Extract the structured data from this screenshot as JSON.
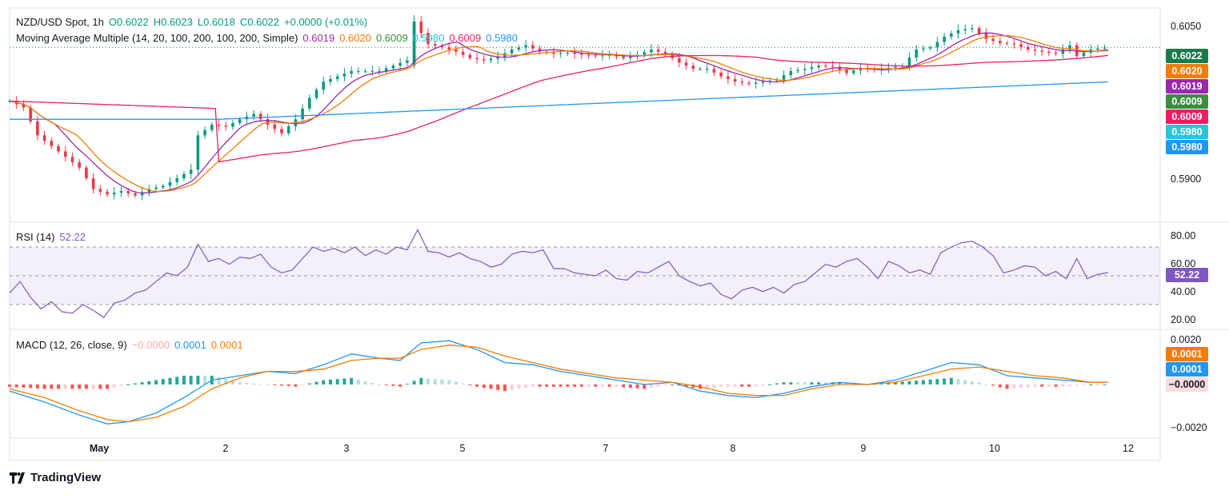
{
  "header": {
    "symbol": "NZD/USD Spot, 1h",
    "open": "O0.6022",
    "high": "H0.6023",
    "low": "L0.6018",
    "close": "C0.6022",
    "change": "+0.0000 (+0.01%)"
  },
  "ma_legend": {
    "label": "Moving Average Multiple (14, 20, 100, 200, 100, 200, Simple)",
    "values": [
      "0.6019",
      "0.6020",
      "0.6009",
      "0.5980",
      "0.6009",
      "0.5980"
    ]
  },
  "rsi_legend": {
    "label": "RSI (14)",
    "value": "52.22"
  },
  "macd_legend": {
    "label": "MACD (12, 26, close, 9)",
    "hist": "−0.0000",
    "macd": "0.0001",
    "signal": "0.0001"
  },
  "price_axis": {
    "ticks": [
      "0.6050",
      "0.5900"
    ]
  },
  "price_pills": [
    {
      "value": "0.6022",
      "color": "#1b7a4a"
    },
    {
      "value": "0.6020",
      "color": "#f57c00"
    },
    {
      "value": "0.6019",
      "color": "#9c27b0"
    },
    {
      "value": "0.6009",
      "color": "#388e3c"
    },
    {
      "value": "0.6009",
      "color": "#e91e63"
    },
    {
      "value": "0.5980",
      "color": "#26c6da"
    },
    {
      "value": "0.5980",
      "color": "#2196f3"
    }
  ],
  "rsi_axis": {
    "ticks": [
      "80.00",
      "60.00",
      "40.00",
      "20.00"
    ],
    "pill": "52.22"
  },
  "macd_axis": {
    "ticks": [
      "0.0020",
      "−0.0020"
    ],
    "pills": [
      "0.0001",
      "0.0001",
      "−0.0000"
    ]
  },
  "x_axis": {
    "labels": [
      "May",
      "2",
      "3",
      "5",
      "7",
      "8",
      "9",
      "10",
      "12"
    ]
  },
  "brand": "TradingView",
  "chart_data": [
    {
      "type": "candlestick",
      "title": "NZD/USD Spot, 1h",
      "x_labels": [
        "May",
        "2",
        "3",
        "5",
        "7",
        "8",
        "9",
        "10",
        "12"
      ],
      "ylim": [
        0.5865,
        0.6055
      ],
      "current_price": 0.6022,
      "close_path": [
        [
          0,
          0.5972
        ],
        [
          4,
          0.5966
        ],
        [
          8,
          0.594
        ],
        [
          12,
          0.593
        ],
        [
          16,
          0.592
        ],
        [
          20,
          0.591
        ],
        [
          24,
          0.589
        ],
        [
          28,
          0.5885
        ],
        [
          32,
          0.5888
        ],
        [
          36,
          0.5884
        ],
        [
          40,
          0.589
        ],
        [
          44,
          0.5893
        ],
        [
          48,
          0.59
        ],
        [
          52,
          0.5908
        ],
        [
          54,
          0.594
        ],
        [
          58,
          0.595
        ],
        [
          62,
          0.5948
        ],
        [
          66,
          0.5955
        ],
        [
          70,
          0.596
        ],
        [
          74,
          0.595
        ],
        [
          78,
          0.5942
        ],
        [
          82,
          0.5955
        ],
        [
          86,
          0.5975
        ],
        [
          90,
          0.599
        ],
        [
          94,
          0.5995
        ],
        [
          98,
          0.6
        ],
        [
          102,
          0.6
        ],
        [
          106,
          0.6
        ],
        [
          110,
          0.6005
        ],
        [
          114,
          0.601
        ],
        [
          116,
          0.6046
        ],
        [
          120,
          0.6025
        ],
        [
          124,
          0.6022
        ],
        [
          128,
          0.6018
        ],
        [
          132,
          0.6012
        ],
        [
          136,
          0.601
        ],
        [
          140,
          0.6013
        ],
        [
          144,
          0.602
        ],
        [
          148,
          0.6024
        ],
        [
          152,
          0.6018
        ],
        [
          156,
          0.6016
        ],
        [
          160,
          0.6017
        ],
        [
          164,
          0.6015
        ],
        [
          168,
          0.6014
        ],
        [
          172,
          0.6015
        ],
        [
          176,
          0.6012
        ],
        [
          180,
          0.6015
        ],
        [
          184,
          0.602
        ],
        [
          188,
          0.6016
        ],
        [
          192,
          0.6008
        ],
        [
          196,
          0.6002
        ],
        [
          200,
          0.6002
        ],
        [
          204,
          0.5995
        ],
        [
          208,
          0.599
        ],
        [
          212,
          0.5988
        ],
        [
          216,
          0.599
        ],
        [
          220,
          0.5992
        ],
        [
          224,
          0.6
        ],
        [
          228,
          0.6002
        ],
        [
          232,
          0.6005
        ],
        [
          236,
          0.6004
        ],
        [
          240,
          0.5998
        ],
        [
          244,
          0.6003
        ],
        [
          248,
          0.6001
        ],
        [
          252,
          0.6003
        ],
        [
          256,
          0.6005
        ],
        [
          260,
          0.602
        ],
        [
          264,
          0.6022
        ],
        [
          268,
          0.6032
        ],
        [
          272,
          0.6038
        ],
        [
          276,
          0.604
        ],
        [
          280,
          0.603
        ],
        [
          284,
          0.6026
        ],
        [
          288,
          0.6025
        ],
        [
          292,
          0.602
        ],
        [
          296,
          0.6018
        ],
        [
          300,
          0.6016
        ],
        [
          304,
          0.6024
        ],
        [
          306,
          0.6014
        ],
        [
          310,
          0.602
        ],
        [
          314,
          0.6022
        ]
      ],
      "moving_averages": [
        {
          "name": "MA 14",
          "value": 0.6019,
          "color": "#9c27b0"
        },
        {
          "name": "MA 20",
          "value": 0.602,
          "color": "#f57c00"
        },
        {
          "name": "MA 100",
          "value": 0.6009,
          "color": "#e91e63"
        },
        {
          "name": "MA 200",
          "value": 0.598,
          "color": "#2196f3"
        }
      ]
    },
    {
      "type": "line",
      "title": "RSI (14)",
      "ylim": [
        15,
        85
      ],
      "bands": [
        30,
        50,
        70
      ],
      "last": 52.22,
      "values": [
        [
          0,
          38
        ],
        [
          3,
          46
        ],
        [
          6,
          35
        ],
        [
          9,
          27
        ],
        [
          12,
          32
        ],
        [
          15,
          25
        ],
        [
          18,
          24
        ],
        [
          21,
          30
        ],
        [
          24,
          26
        ],
        [
          27,
          21
        ],
        [
          30,
          31
        ],
        [
          33,
          33
        ],
        [
          36,
          38
        ],
        [
          39,
          40
        ],
        [
          42,
          46
        ],
        [
          45,
          52
        ],
        [
          48,
          50
        ],
        [
          51,
          56
        ],
        [
          54,
          72
        ],
        [
          57,
          60
        ],
        [
          60,
          62
        ],
        [
          63,
          58
        ],
        [
          66,
          63
        ],
        [
          69,
          62
        ],
        [
          72,
          65
        ],
        [
          75,
          56
        ],
        [
          78,
          52
        ],
        [
          81,
          54
        ],
        [
          84,
          62
        ],
        [
          87,
          70
        ],
        [
          90,
          67
        ],
        [
          93,
          69
        ],
        [
          96,
          66
        ],
        [
          99,
          70
        ],
        [
          102,
          64
        ],
        [
          105,
          68
        ],
        [
          108,
          65
        ],
        [
          111,
          70
        ],
        [
          114,
          68
        ],
        [
          117,
          82
        ],
        [
          120,
          67
        ],
        [
          123,
          66
        ],
        [
          126,
          63
        ],
        [
          129,
          66
        ],
        [
          132,
          62
        ],
        [
          135,
          60
        ],
        [
          138,
          56
        ],
        [
          141,
          58
        ],
        [
          144,
          65
        ],
        [
          147,
          67
        ],
        [
          150,
          66
        ],
        [
          153,
          68
        ],
        [
          156,
          55
        ],
        [
          159,
          55
        ],
        [
          162,
          52
        ],
        [
          165,
          51
        ],
        [
          168,
          50
        ],
        [
          171,
          54
        ],
        [
          174,
          48
        ],
        [
          177,
          47
        ],
        [
          180,
          53
        ],
        [
          183,
          52
        ],
        [
          186,
          56
        ],
        [
          189,
          60
        ],
        [
          192,
          50
        ],
        [
          195,
          46
        ],
        [
          198,
          43
        ],
        [
          201,
          45
        ],
        [
          204,
          37
        ],
        [
          207,
          34
        ],
        [
          210,
          40
        ],
        [
          213,
          42
        ],
        [
          216,
          39
        ],
        [
          219,
          42
        ],
        [
          222,
          38
        ],
        [
          225,
          44
        ],
        [
          228,
          46
        ],
        [
          231,
          52
        ],
        [
          234,
          58
        ],
        [
          237,
          56
        ],
        [
          240,
          60
        ],
        [
          243,
          62
        ],
        [
          246,
          56
        ],
        [
          249,
          48
        ],
        [
          252,
          60
        ],
        [
          255,
          57
        ],
        [
          258,
          52
        ],
        [
          261,
          54
        ],
        [
          264,
          51
        ],
        [
          267,
          66
        ],
        [
          270,
          70
        ],
        [
          273,
          73
        ],
        [
          276,
          74
        ],
        [
          279,
          70
        ],
        [
          282,
          64
        ],
        [
          285,
          52
        ],
        [
          288,
          54
        ],
        [
          291,
          57
        ],
        [
          294,
          56
        ],
        [
          297,
          50
        ],
        [
          300,
          53
        ],
        [
          303,
          48
        ],
        [
          306,
          62
        ],
        [
          309,
          48
        ],
        [
          312,
          51
        ],
        [
          315,
          52.22
        ]
      ]
    },
    {
      "type": "bar+line",
      "title": "MACD (12, 26, close, 9)",
      "ylim": [
        -0.0023,
        0.0023
      ],
      "series": [
        {
          "name": "MACD",
          "color": "#2196f3",
          "last": 0.0001
        },
        {
          "name": "Signal",
          "color": "#f57c00",
          "last": 0.0001
        },
        {
          "name": "Histogram",
          "last": -0.0
        }
      ],
      "macd_path": [
        [
          0,
          -0.0003
        ],
        [
          10,
          -0.0008
        ],
        [
          20,
          -0.0014
        ],
        [
          28,
          -0.0018
        ],
        [
          34,
          -0.0017
        ],
        [
          42,
          -0.0013
        ],
        [
          50,
          -0.0006
        ],
        [
          58,
          0.0002
        ],
        [
          66,
          0.0004
        ],
        [
          74,
          0.0006
        ],
        [
          82,
          0.0005
        ],
        [
          90,
          0.0009
        ],
        [
          98,
          0.0014
        ],
        [
          106,
          0.0012
        ],
        [
          112,
          0.0011
        ],
        [
          118,
          0.0019
        ],
        [
          126,
          0.002
        ],
        [
          134,
          0.0016
        ],
        [
          142,
          0.001
        ],
        [
          150,
          0.0009
        ],
        [
          158,
          0.0006
        ],
        [
          166,
          0.0004
        ],
        [
          174,
          0.0002
        ],
        [
          182,
          0.0
        ],
        [
          190,
          0.0001
        ],
        [
          198,
          -0.0003
        ],
        [
          206,
          -0.0005
        ],
        [
          214,
          -0.0006
        ],
        [
          222,
          -0.0004
        ],
        [
          230,
          -0.0001
        ],
        [
          238,
          0.0001
        ],
        [
          246,
          0.0
        ],
        [
          254,
          0.0002
        ],
        [
          262,
          0.0006
        ],
        [
          270,
          0.001
        ],
        [
          278,
          0.0009
        ],
        [
          286,
          0.0004
        ],
        [
          294,
          0.0003
        ],
        [
          302,
          0.0002
        ],
        [
          310,
          0.0001
        ],
        [
          315,
          0.0001
        ]
      ],
      "signal_path": [
        [
          0,
          -0.0002
        ],
        [
          10,
          -0.0006
        ],
        [
          20,
          -0.0012
        ],
        [
          28,
          -0.0016
        ],
        [
          34,
          -0.0017
        ],
        [
          42,
          -0.0015
        ],
        [
          50,
          -0.001
        ],
        [
          58,
          -0.0002
        ],
        [
          66,
          0.0003
        ],
        [
          74,
          0.0006
        ],
        [
          82,
          0.0006
        ],
        [
          90,
          0.0007
        ],
        [
          98,
          0.0011
        ],
        [
          106,
          0.0012
        ],
        [
          112,
          0.0012
        ],
        [
          118,
          0.0016
        ],
        [
          126,
          0.0018
        ],
        [
          134,
          0.0017
        ],
        [
          142,
          0.0013
        ],
        [
          150,
          0.001
        ],
        [
          158,
          0.0007
        ],
        [
          166,
          0.0005
        ],
        [
          174,
          0.0003
        ],
        [
          182,
          0.0002
        ],
        [
          190,
          0.0001
        ],
        [
          198,
          -0.0001
        ],
        [
          206,
          -0.0004
        ],
        [
          214,
          -0.0005
        ],
        [
          222,
          -0.0005
        ],
        [
          230,
          -0.0002
        ],
        [
          238,
          0.0
        ],
        [
          246,
          0.0
        ],
        [
          254,
          0.0001
        ],
        [
          262,
          0.0004
        ],
        [
          270,
          0.0007
        ],
        [
          278,
          0.0008
        ],
        [
          286,
          0.0006
        ],
        [
          294,
          0.0004
        ],
        [
          302,
          0.0003
        ],
        [
          310,
          0.0001
        ],
        [
          315,
          0.0001
        ]
      ]
    }
  ]
}
